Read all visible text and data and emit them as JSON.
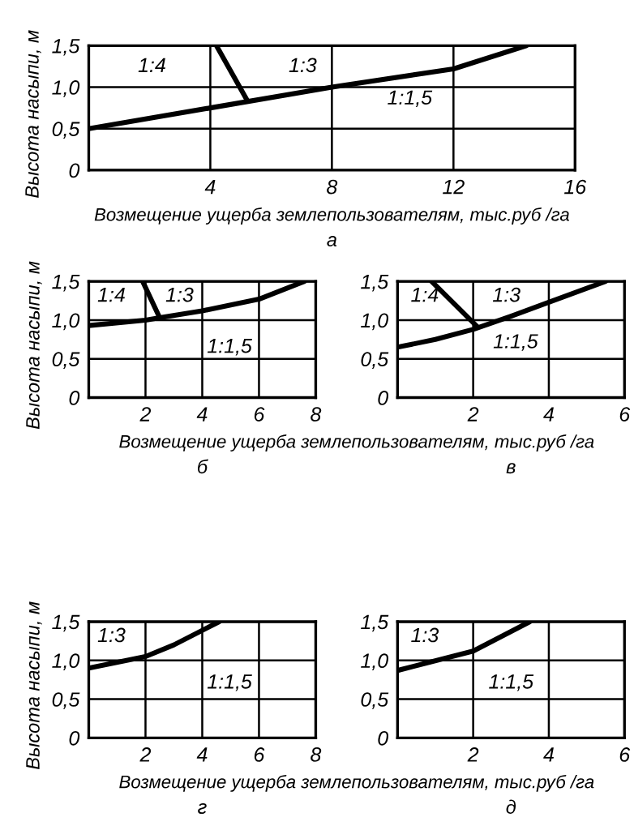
{
  "chart_data": [
    {
      "type": "line",
      "subtitle": "а",
      "xlabel": "Возмещение ущерба землепользователям, тыс.руб /га",
      "ylabel": "Высота насыпи, м",
      "xlim": [
        0,
        16
      ],
      "ylim": [
        0,
        1.5
      ],
      "xticks": [
        4,
        8,
        12,
        16
      ],
      "yticks": [
        0,
        {
          "value": 0.5,
          "label": "0,5"
        },
        {
          "value": 1.0,
          "label": "1,0"
        },
        {
          "value": 1.5,
          "label": "1,5"
        }
      ],
      "grid": true,
      "series": [
        {
          "color": "#000000",
          "x": [
            0,
            4,
            8,
            12,
            14.4
          ],
          "values": [
            0.5,
            0.75,
            1.0,
            1.22,
            1.5
          ]
        },
        {
          "color": "#000000",
          "x": [
            4.2,
            5.2
          ],
          "values": [
            1.5,
            0.85
          ]
        }
      ],
      "annotations": [
        "1:4",
        "1:3",
        "1:1,5"
      ]
    },
    {
      "type": "line",
      "subtitle": "б",
      "xlabel": "Возмещение ущерба землепользователям, тыс.руб /га",
      "ylabel": "Высота насыпи, м",
      "xlim": [
        0,
        8
      ],
      "ylim": [
        0,
        1.5
      ],
      "xticks": [
        2,
        4,
        6,
        8
      ],
      "yticks": [
        0,
        {
          "value": 0.5,
          "label": "0,5"
        },
        {
          "value": 1.0,
          "label": "1,0"
        },
        {
          "value": 1.5,
          "label": "1,5"
        }
      ],
      "grid": true,
      "series": [
        {
          "color": "#000000",
          "x": [
            0,
            2,
            2.5,
            4,
            6,
            7.6
          ],
          "values": [
            0.93,
            1.0,
            1.03,
            1.12,
            1.27,
            1.5
          ]
        },
        {
          "color": "#000000",
          "x": [
            1.9,
            2.5
          ],
          "values": [
            1.5,
            1.03
          ]
        }
      ],
      "annotations": [
        "1:4",
        "1:3",
        "1:1,5"
      ]
    },
    {
      "type": "line",
      "subtitle": "в",
      "xlim": [
        0,
        6
      ],
      "ylim": [
        0,
        1.5
      ],
      "xticks": [
        2,
        4,
        6
      ],
      "yticks": [
        0,
        {
          "value": 0.5,
          "label": "0,5"
        },
        {
          "value": 1.0,
          "label": "1,0"
        },
        {
          "value": 1.5,
          "label": "1,5"
        }
      ],
      "grid": true,
      "series": [
        {
          "color": "#000000",
          "x": [
            0,
            1,
            2,
            3,
            4,
            5.5
          ],
          "values": [
            0.65,
            0.75,
            0.88,
            1.05,
            1.23,
            1.5
          ]
        },
        {
          "color": "#000000",
          "x": [
            0.9,
            2.1
          ],
          "values": [
            1.5,
            0.92
          ]
        }
      ],
      "annotations": [
        "1:4",
        "1:3",
        "1:1,5"
      ]
    },
    {
      "type": "line",
      "subtitle": "г",
      "xlabel": "Возмещение ущерба землепользователям, тыс.руб /га",
      "ylabel": "Высота насыпи, м",
      "xlim": [
        0,
        8
      ],
      "ylim": [
        0,
        1.5
      ],
      "xticks": [
        2,
        4,
        6,
        8
      ],
      "yticks": [
        0,
        {
          "value": 0.5,
          "label": "0,5"
        },
        {
          "value": 1.0,
          "label": "1,0"
        },
        {
          "value": 1.5,
          "label": "1,5"
        }
      ],
      "grid": true,
      "series": [
        {
          "color": "#000000",
          "x": [
            0,
            2,
            3,
            4.6
          ],
          "values": [
            0.9,
            1.05,
            1.2,
            1.5
          ]
        }
      ],
      "annotations": [
        "1:3",
        "1:1,5"
      ]
    },
    {
      "type": "line",
      "subtitle": "д",
      "xlim": [
        0,
        6
      ],
      "ylim": [
        0,
        1.5
      ],
      "xticks": [
        2,
        4,
        6
      ],
      "yticks": [
        0,
        {
          "value": 0.5,
          "label": "0,5"
        },
        {
          "value": 1.0,
          "label": "1,0"
        },
        {
          "value": 1.5,
          "label": "1,5"
        }
      ],
      "grid": true,
      "series": [
        {
          "color": "#000000",
          "x": [
            0,
            2,
            3.5
          ],
          "values": [
            0.87,
            1.12,
            1.5
          ]
        }
      ],
      "annotations": [
        "1:3",
        "1:1,5"
      ]
    }
  ]
}
